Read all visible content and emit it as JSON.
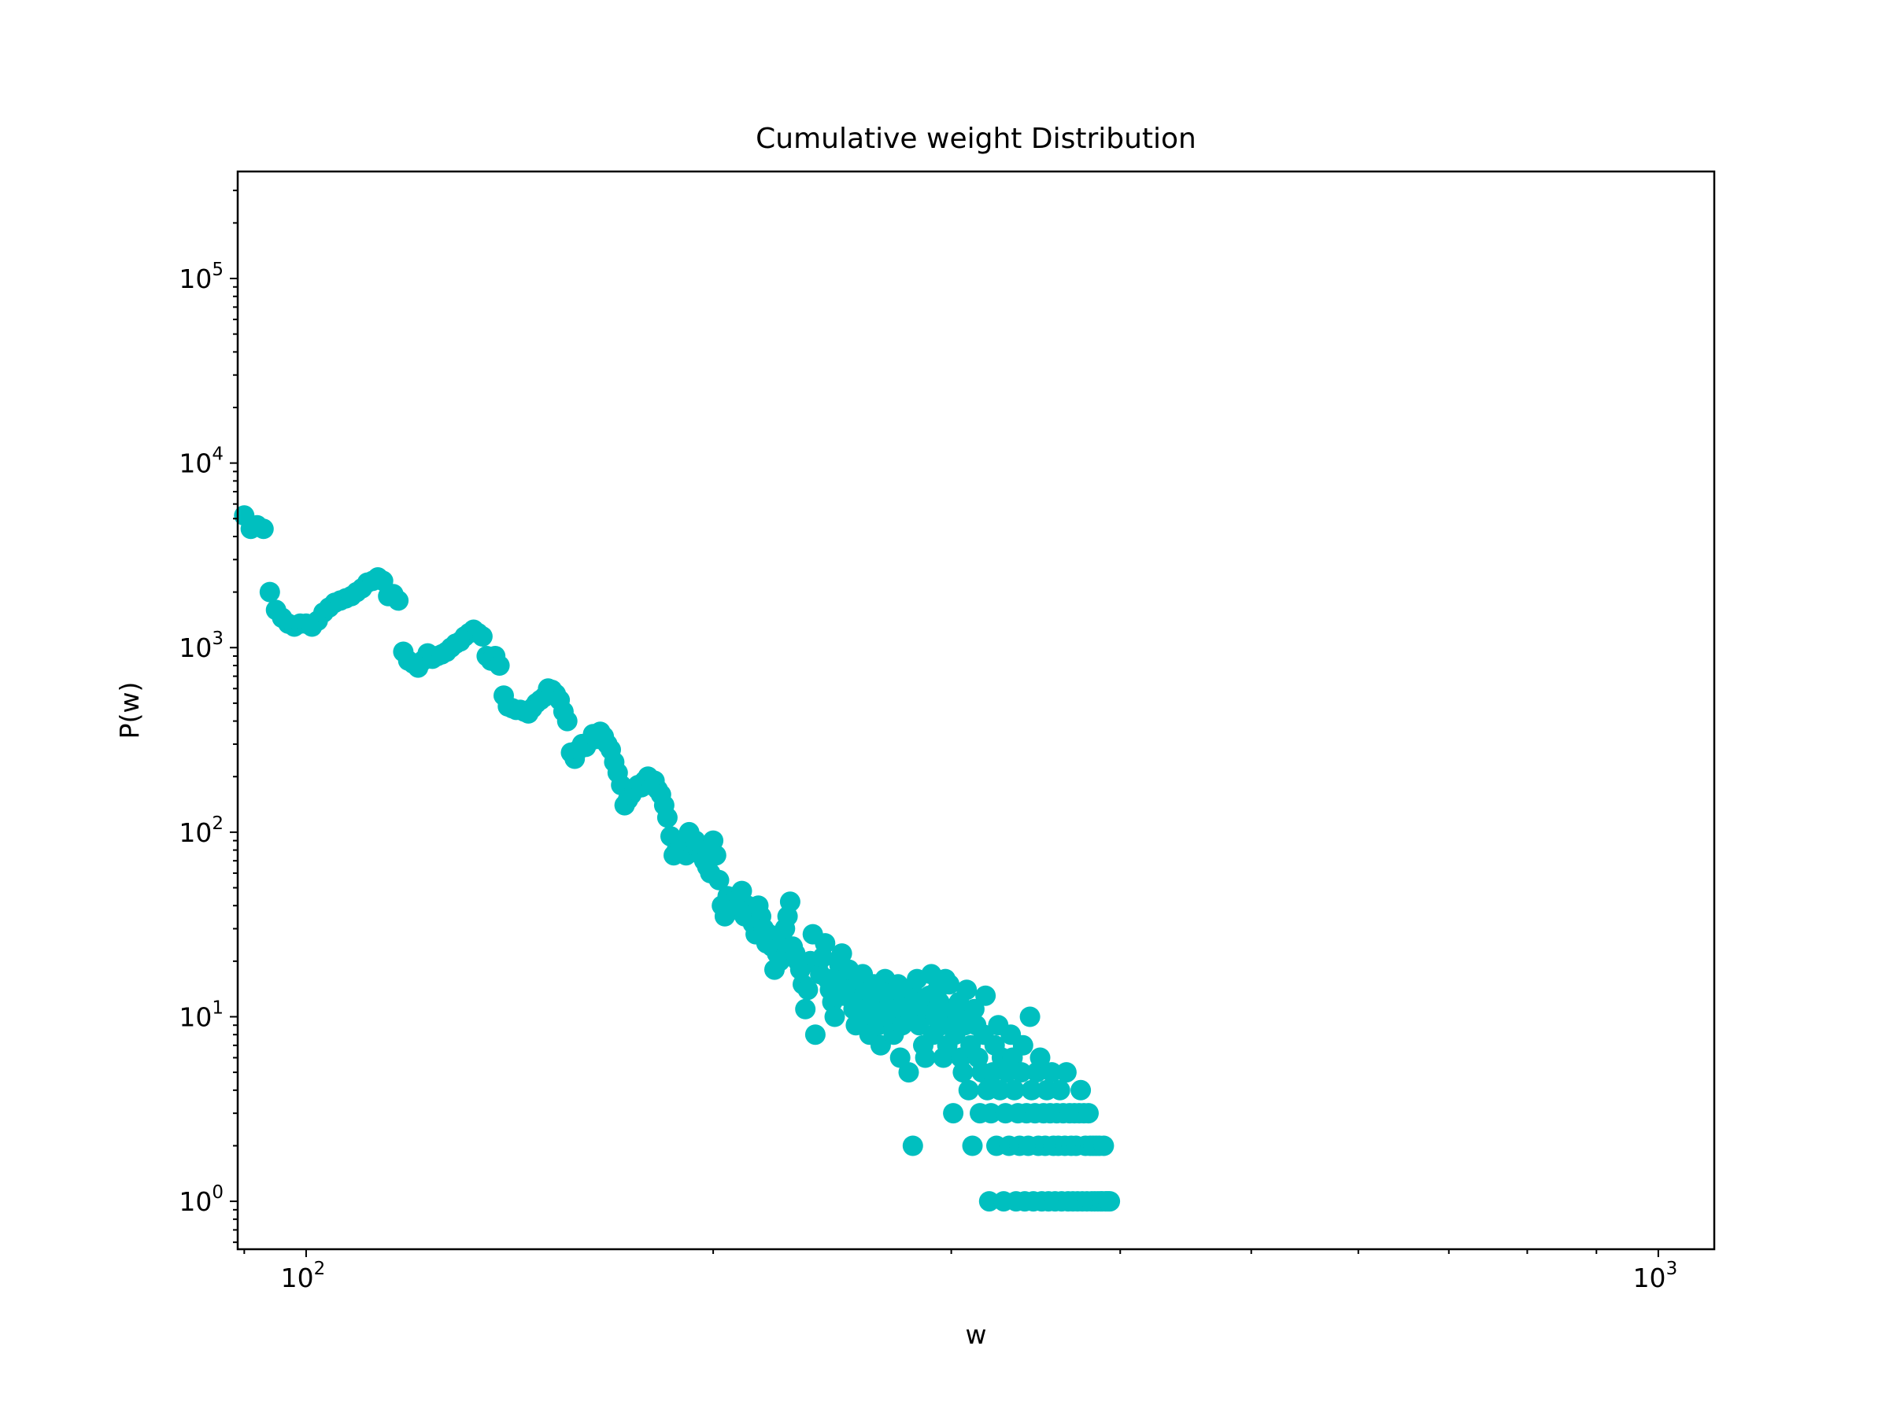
{
  "chart_data": {
    "type": "scatter",
    "title": "Cumulative weight Distribution",
    "xlabel": "w",
    "ylabel": "P(w)",
    "x_scale": "log",
    "y_scale": "log",
    "xlim": [
      89,
      1100
    ],
    "ylim": [
      0.55,
      380000
    ],
    "grid": false,
    "marker_color": "#00BFBF",
    "x_major_ticks": [
      {
        "value": 100,
        "base": "10",
        "exp": "2"
      },
      {
        "value": 1000,
        "base": "10",
        "exp": "3"
      }
    ],
    "y_major_ticks": [
      {
        "value": 1,
        "base": "10",
        "exp": "0"
      },
      {
        "value": 10,
        "base": "10",
        "exp": "1"
      },
      {
        "value": 100,
        "base": "10",
        "exp": "2"
      },
      {
        "value": 1000,
        "base": "10",
        "exp": "3"
      },
      {
        "value": 10000,
        "base": "10",
        "exp": "4"
      },
      {
        "value": 100000,
        "base": "10",
        "exp": "5"
      }
    ],
    "series": [
      {
        "points": [
          [
            90,
            5200
          ],
          [
            91,
            4400
          ],
          [
            92,
            4600
          ],
          [
            93,
            4400
          ],
          [
            94,
            2000
          ],
          [
            95,
            1600
          ],
          [
            96,
            1450
          ],
          [
            97,
            1350
          ],
          [
            98,
            1300
          ],
          [
            99,
            1350
          ],
          [
            100,
            1350
          ],
          [
            101,
            1300
          ],
          [
            102,
            1400
          ],
          [
            103,
            1550
          ],
          [
            104,
            1650
          ],
          [
            105,
            1750
          ],
          [
            106,
            1800
          ],
          [
            107,
            1850
          ],
          [
            108,
            1900
          ],
          [
            109,
            2000
          ],
          [
            110,
            2100
          ],
          [
            111,
            2250
          ],
          [
            112,
            2300
          ],
          [
            113,
            2400
          ],
          [
            114,
            2300
          ],
          [
            115,
            1900
          ],
          [
            116,
            1950
          ],
          [
            117,
            1800
          ],
          [
            118,
            950
          ],
          [
            119,
            850
          ],
          [
            120,
            820
          ],
          [
            121,
            780
          ],
          [
            122,
            850
          ],
          [
            123,
            930
          ],
          [
            124,
            870
          ],
          [
            125,
            900
          ],
          [
            126,
            920
          ],
          [
            127,
            950
          ],
          [
            128,
            1000
          ],
          [
            129,
            1050
          ],
          [
            130,
            1080
          ],
          [
            131,
            1150
          ],
          [
            132,
            1200
          ],
          [
            133,
            1250
          ],
          [
            134,
            1200
          ],
          [
            135,
            1150
          ],
          [
            136,
            900
          ],
          [
            137,
            850
          ],
          [
            138,
            900
          ],
          [
            139,
            800
          ],
          [
            140,
            550
          ],
          [
            141,
            480
          ],
          [
            142,
            470
          ],
          [
            143,
            460
          ],
          [
            144,
            460
          ],
          [
            145,
            450
          ],
          [
            146,
            440
          ],
          [
            147,
            470
          ],
          [
            148,
            500
          ],
          [
            149,
            520
          ],
          [
            150,
            540
          ],
          [
            151,
            600
          ],
          [
            152,
            590
          ],
          [
            153,
            560
          ],
          [
            154,
            520
          ],
          [
            155,
            450
          ],
          [
            156,
            400
          ],
          [
            157,
            270
          ],
          [
            158,
            250
          ],
          [
            159,
            280
          ],
          [
            160,
            300
          ],
          [
            161,
            290
          ],
          [
            162,
            310
          ],
          [
            163,
            340
          ],
          [
            164,
            320
          ],
          [
            165,
            350
          ],
          [
            166,
            330
          ],
          [
            167,
            300
          ],
          [
            168,
            280
          ],
          [
            169,
            240
          ],
          [
            170,
            210
          ],
          [
            171,
            180
          ],
          [
            172,
            140
          ],
          [
            173,
            150
          ],
          [
            174,
            160
          ],
          [
            175,
            170
          ],
          [
            176,
            180
          ],
          [
            177,
            175
          ],
          [
            178,
            190
          ],
          [
            179,
            200
          ],
          [
            180,
            180
          ],
          [
            181,
            190
          ],
          [
            182,
            170
          ],
          [
            183,
            160
          ],
          [
            184,
            140
          ],
          [
            185,
            120
          ],
          [
            186,
            95
          ],
          [
            187,
            75
          ],
          [
            188,
            80
          ],
          [
            189,
            85
          ],
          [
            190,
            90
          ],
          [
            191,
            75
          ],
          [
            192,
            100
          ],
          [
            193,
            85
          ],
          [
            194,
            90
          ],
          [
            195,
            80
          ],
          [
            196,
            75
          ],
          [
            197,
            70
          ],
          [
            198,
            65
          ],
          [
            199,
            60
          ],
          [
            200,
            90
          ],
          [
            201,
            75
          ],
          [
            202,
            55
          ],
          [
            203,
            40
          ],
          [
            204,
            35
          ],
          [
            205,
            45
          ],
          [
            206,
            40
          ],
          [
            207,
            38
          ],
          [
            208,
            45
          ],
          [
            209,
            42
          ],
          [
            210,
            48
          ],
          [
            211,
            35
          ],
          [
            212,
            40
          ],
          [
            213,
            38
          ],
          [
            214,
            32
          ],
          [
            215,
            28
          ],
          [
            216,
            40
          ],
          [
            217,
            35
          ],
          [
            218,
            30
          ],
          [
            219,
            25
          ],
          [
            220,
            28
          ],
          [
            221,
            24
          ],
          [
            222,
            18
          ],
          [
            223,
            22
          ],
          [
            224,
            20
          ],
          [
            225,
            26
          ],
          [
            226,
            30
          ],
          [
            227,
            35
          ],
          [
            228,
            42
          ],
          [
            229,
            24
          ],
          [
            230,
            22
          ],
          [
            231,
            20
          ],
          [
            232,
            18
          ],
          [
            233,
            15
          ],
          [
            234,
            11
          ],
          [
            235,
            14
          ],
          [
            236,
            20
          ],
          [
            237,
            28
          ],
          [
            238,
            8
          ],
          [
            239,
            19
          ],
          [
            240,
            17
          ],
          [
            241,
            21
          ],
          [
            242,
            25
          ],
          [
            243,
            16
          ],
          [
            244,
            14
          ],
          [
            245,
            12
          ],
          [
            246,
            10
          ],
          [
            247,
            15
          ],
          [
            248,
            19
          ],
          [
            249,
            22
          ],
          [
            250,
            13
          ],
          [
            251,
            16
          ],
          [
            252,
            18
          ],
          [
            253,
            14
          ],
          [
            254,
            11
          ],
          [
            255,
            9
          ],
          [
            256,
            12
          ],
          [
            257,
            15
          ],
          [
            258,
            17
          ],
          [
            259,
            14
          ],
          [
            260,
            10
          ],
          [
            261,
            8
          ],
          [
            262,
            12
          ],
          [
            263,
            15
          ],
          [
            264,
            11
          ],
          [
            265,
            9
          ],
          [
            266,
            7
          ],
          [
            267,
            13
          ],
          [
            268,
            16
          ],
          [
            269,
            10
          ],
          [
            270,
            12
          ],
          [
            271,
            14
          ],
          [
            272,
            8
          ],
          [
            273,
            11
          ],
          [
            274,
            15
          ],
          [
            275,
            6
          ],
          [
            276,
            9
          ],
          [
            277,
            12
          ],
          [
            278,
            14
          ],
          [
            279,
            5
          ],
          [
            280,
            10
          ],
          [
            281,
            2
          ],
          [
            282,
            13
          ],
          [
            283,
            16
          ],
          [
            284,
            9
          ],
          [
            285,
            12
          ],
          [
            286,
            7
          ],
          [
            287,
            6
          ],
          [
            288,
            11
          ],
          [
            289,
            13
          ],
          [
            290,
            17
          ],
          [
            291,
            8
          ],
          [
            292,
            10
          ],
          [
            293,
            14
          ],
          [
            294,
            12
          ],
          [
            295,
            9
          ],
          [
            296,
            6
          ],
          [
            297,
            16
          ],
          [
            298,
            7
          ],
          [
            299,
            15
          ],
          [
            300,
            11
          ],
          [
            301,
            3
          ],
          [
            302,
            8
          ],
          [
            303,
            10
          ],
          [
            304,
            12
          ],
          [
            305,
            6
          ],
          [
            306,
            5
          ],
          [
            307,
            9
          ],
          [
            308,
            14
          ],
          [
            309,
            4
          ],
          [
            310,
            7
          ],
          [
            311,
            2
          ],
          [
            312,
            11
          ],
          [
            313,
            9
          ],
          [
            314,
            6
          ],
          [
            315,
            3
          ],
          [
            316,
            5
          ],
          [
            317,
            8
          ],
          [
            318,
            13
          ],
          [
            319,
            4
          ],
          [
            320,
            1
          ],
          [
            321,
            3
          ],
          [
            322,
            5
          ],
          [
            323,
            7
          ],
          [
            324,
            2
          ],
          [
            325,
            9
          ],
          [
            326,
            4
          ],
          [
            327,
            6
          ],
          [
            328,
            1
          ],
          [
            329,
            3
          ],
          [
            330,
            5
          ],
          [
            331,
            2
          ],
          [
            332,
            8
          ],
          [
            333,
            6
          ],
          [
            334,
            4
          ],
          [
            335,
            1
          ],
          [
            336,
            3
          ],
          [
            337,
            2
          ],
          [
            338,
            5
          ],
          [
            339,
            7
          ],
          [
            340,
            1
          ],
          [
            341,
            3
          ],
          [
            342,
            2
          ],
          [
            343,
            10
          ],
          [
            344,
            4
          ],
          [
            345,
            1
          ],
          [
            346,
            3
          ],
          [
            347,
            5
          ],
          [
            348,
            2
          ],
          [
            349,
            6
          ],
          [
            350,
            1
          ],
          [
            351,
            3
          ],
          [
            352,
            2
          ],
          [
            353,
            4
          ],
          [
            354,
            1
          ],
          [
            355,
            3
          ],
          [
            356,
            5
          ],
          [
            357,
            2
          ],
          [
            358,
            1
          ],
          [
            359,
            3
          ],
          [
            360,
            2
          ],
          [
            361,
            4
          ],
          [
            362,
            1
          ],
          [
            363,
            3
          ],
          [
            364,
            2
          ],
          [
            365,
            5
          ],
          [
            366,
            1
          ],
          [
            367,
            3
          ],
          [
            368,
            2
          ],
          [
            369,
            1
          ],
          [
            370,
            3
          ],
          [
            371,
            2
          ],
          [
            372,
            1
          ],
          [
            373,
            3
          ],
          [
            374,
            4
          ],
          [
            375,
            1
          ],
          [
            376,
            3
          ],
          [
            377,
            2
          ],
          [
            378,
            1
          ],
          [
            379,
            3
          ],
          [
            380,
            2
          ],
          [
            381,
            1
          ],
          [
            382,
            2
          ],
          [
            383,
            1
          ],
          [
            384,
            2
          ],
          [
            385,
            1
          ],
          [
            386,
            2
          ],
          [
            387,
            1
          ],
          [
            388,
            1
          ],
          [
            389,
            2
          ],
          [
            390,
            1
          ],
          [
            391,
            1
          ],
          [
            392,
            1
          ],
          [
            393,
            1
          ]
        ]
      }
    ]
  }
}
